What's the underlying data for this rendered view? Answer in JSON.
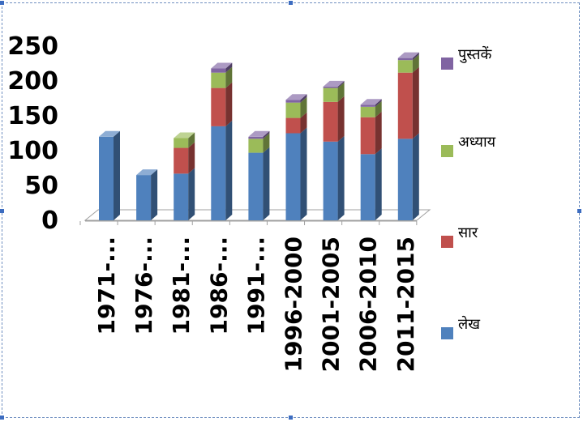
{
  "chart_data": {
    "type": "bar",
    "stacked": true,
    "three_d": true,
    "categories": [
      "1971-...",
      "1976-...",
      "1981-...",
      "1986-...",
      "1991-...",
      "1996-2000",
      "2001-2005",
      "2006-2010",
      "2011-2015"
    ],
    "series": [
      {
        "name": "लेख",
        "color": "#4f81bd",
        "values": [
          120,
          65,
          67,
          135,
          97,
          125,
          113,
          95,
          117
        ]
      },
      {
        "name": "सार",
        "color": "#c0504d",
        "values": [
          0,
          0,
          37,
          55,
          0,
          22,
          57,
          53,
          95
        ]
      },
      {
        "name": "अध्याय",
        "color": "#9bbb59",
        "values": [
          0,
          0,
          14,
          22,
          20,
          22,
          20,
          15,
          18
        ]
      },
      {
        "name": "पुस्तकें",
        "color": "#8064a2",
        "values": [
          0,
          0,
          0,
          6,
          3,
          4,
          2,
          3,
          3
        ]
      }
    ],
    "yticks": [
      0,
      50,
      100,
      150,
      200,
      250
    ],
    "ylim": [
      0,
      250
    ],
    "legend_position": "right",
    "legend_order": [
      "पुस्तकें",
      "अध्याय",
      "सार",
      "लेख"
    ],
    "grid": false
  }
}
